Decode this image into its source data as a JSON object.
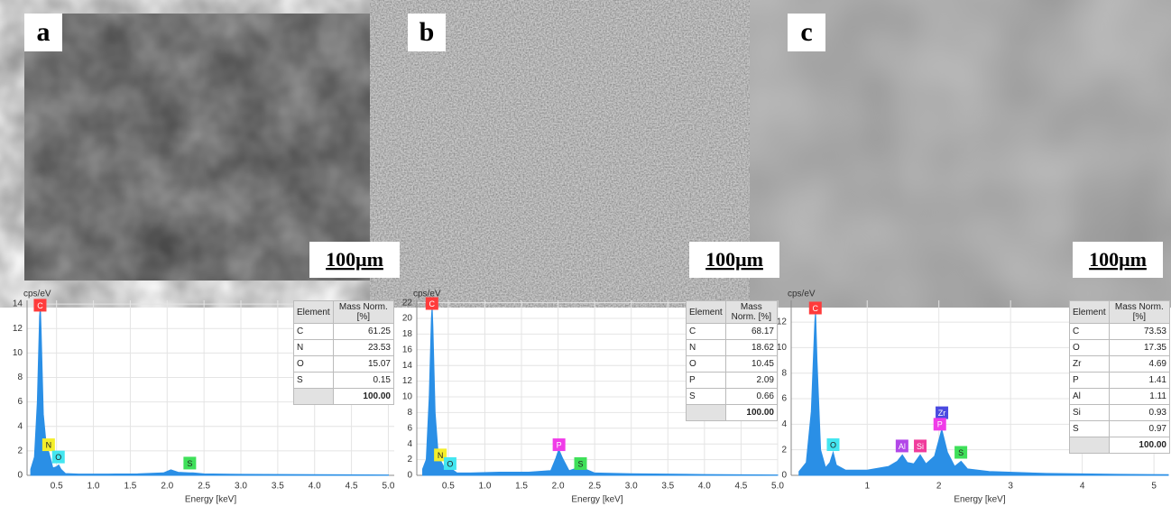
{
  "panels": [
    {
      "label": "a",
      "scale_bar": "100μm"
    },
    {
      "label": "b",
      "scale_bar": "100μm"
    },
    {
      "label": "c",
      "scale_bar": "100μm"
    }
  ],
  "chart_data": [
    {
      "type": "area",
      "y_label": "cps/eV",
      "x_label": "Energy [keV]",
      "color": "#2a8fe6",
      "grid": true,
      "x": [
        0.15,
        0.2,
        0.24,
        0.27,
        0.28,
        0.29,
        0.32,
        0.36,
        0.4,
        0.45,
        0.5,
        0.53,
        0.56,
        0.62,
        0.8,
        1.2,
        1.6,
        1.95,
        2.05,
        2.15,
        2.3,
        2.35,
        2.5,
        3.0,
        4.0,
        5.0
      ],
      "values": [
        0.5,
        1.5,
        6,
        13,
        13.8,
        12,
        5,
        2.5,
        1.8,
        0.6,
        0.7,
        0.85,
        0.5,
        0.15,
        0.1,
        0.1,
        0.12,
        0.2,
        0.45,
        0.25,
        0.2,
        0.2,
        0.12,
        0.08,
        0.05,
        0.03
      ],
      "xlim": [
        0.1,
        5.08
      ],
      "ylim": [
        0,
        14.3
      ],
      "xticks": [
        {
          "value": 0.5,
          "label": "0.5"
        },
        {
          "value": 1,
          "label": "1.0"
        },
        {
          "value": 1.5,
          "label": "1.5"
        },
        {
          "value": 2,
          "label": "2.0"
        },
        {
          "value": 2.5,
          "label": "2.5"
        },
        {
          "value": 3,
          "label": "3.0"
        },
        {
          "value": 3.5,
          "label": "3.5"
        },
        {
          "value": 4,
          "label": "4.0"
        },
        {
          "value": 4.5,
          "label": "4.5"
        },
        {
          "value": 5,
          "label": "5.0"
        }
      ],
      "yticks": [
        0,
        2,
        4,
        6,
        8,
        10,
        12,
        14
      ],
      "annotations": [
        {
          "text": "C",
          "x": 0.277,
          "y": 13.9,
          "color": "#ff3b3b"
        },
        {
          "text": "N",
          "x": 0.392,
          "y": 2.5,
          "color": "#f4ee2a"
        },
        {
          "text": "O",
          "x": 0.525,
          "y": 1.5,
          "color": "#43e6f0"
        },
        {
          "text": "S",
          "x": 2.307,
          "y": 1.0,
          "color": "#3fe05a"
        }
      ],
      "table": {
        "header": [
          "Element",
          "Mass Norm. [%]"
        ],
        "rows": [
          [
            "C",
            "61.25"
          ],
          [
            "N",
            "23.53"
          ],
          [
            "O",
            "15.07"
          ],
          [
            "S",
            "0.15"
          ]
        ],
        "total": "100.00"
      }
    },
    {
      "type": "area",
      "y_label": "cps/eV",
      "x_label": "Energy [keV]",
      "color": "#2a8fe6",
      "grid": true,
      "x": [
        0.15,
        0.2,
        0.24,
        0.27,
        0.28,
        0.29,
        0.32,
        0.36,
        0.4,
        0.45,
        0.5,
        0.53,
        0.56,
        0.62,
        0.8,
        1.2,
        1.6,
        1.9,
        1.97,
        2.01,
        2.06,
        2.15,
        2.25,
        2.31,
        2.37,
        2.5,
        3.0,
        4.0,
        5.0
      ],
      "values": [
        0.8,
        2,
        10,
        20,
        21.5,
        19,
        8,
        3,
        1.8,
        0.9,
        1,
        1.2,
        0.7,
        0.3,
        0.3,
        0.4,
        0.4,
        0.6,
        2.2,
        3.3,
        2.2,
        0.6,
        0.9,
        1.3,
        0.8,
        0.3,
        0.2,
        0.1,
        0.05
      ],
      "xlim": [
        0.07,
        5.0
      ],
      "ylim": [
        0,
        22.3
      ],
      "xticks": [
        {
          "value": 0.5,
          "label": "0.5"
        },
        {
          "value": 1,
          "label": "1.0"
        },
        {
          "value": 1.5,
          "label": "1.5"
        },
        {
          "value": 2,
          "label": "2.0"
        },
        {
          "value": 2.5,
          "label": "2.5"
        },
        {
          "value": 3,
          "label": "3.0"
        },
        {
          "value": 3.5,
          "label": "3.5"
        },
        {
          "value": 4,
          "label": "4.0"
        },
        {
          "value": 4.5,
          "label": "4.5"
        },
        {
          "value": 5,
          "label": "5.0"
        }
      ],
      "yticks": [
        0,
        2,
        4,
        6,
        8,
        10,
        12,
        14,
        16,
        18,
        20,
        22
      ],
      "annotations": [
        {
          "text": "C",
          "x": 0.277,
          "y": 21.9,
          "color": "#ff3b3b"
        },
        {
          "text": "N",
          "x": 0.392,
          "y": 2.6,
          "color": "#f4ee2a"
        },
        {
          "text": "O",
          "x": 0.525,
          "y": 1.5,
          "color": "#43e6f0"
        },
        {
          "text": "P",
          "x": 2.013,
          "y": 3.9,
          "color": "#f03ce8"
        },
        {
          "text": "S",
          "x": 2.307,
          "y": 1.5,
          "color": "#3fe05a"
        }
      ],
      "table": {
        "header": [
          "Element",
          "Mass Norm. [%]"
        ],
        "rows": [
          [
            "C",
            "68.17"
          ],
          [
            "N",
            "18.62"
          ],
          [
            "O",
            "10.45"
          ],
          [
            "P",
            "2.09"
          ],
          [
            "S",
            "0.66"
          ]
        ],
        "total": "100.00"
      }
    },
    {
      "type": "area",
      "y_label": "cps/eV",
      "x_label": "Energy [keV]",
      "color": "#2a8fe6",
      "grid": true,
      "x": [
        0.05,
        0.15,
        0.22,
        0.27,
        0.28,
        0.3,
        0.35,
        0.42,
        0.48,
        0.525,
        0.57,
        0.7,
        1.0,
        1.3,
        1.42,
        1.49,
        1.56,
        1.65,
        1.74,
        1.82,
        1.94,
        2.04,
        2.12,
        2.22,
        2.31,
        2.4,
        2.7,
        3.5,
        4.5,
        5.2
      ],
      "values": [
        0.3,
        1,
        5,
        12,
        12.8,
        9,
        2,
        0.6,
        1,
        1.8,
        0.8,
        0.4,
        0.4,
        0.7,
        1.1,
        1.6,
        1,
        0.9,
        1.6,
        0.9,
        1.5,
        3.6,
        1.8,
        0.7,
        1.1,
        0.5,
        0.3,
        0.15,
        0.08,
        0.05
      ],
      "xlim": [
        -0.06,
        5.2
      ],
      "ylim": [
        0,
        13.7
      ],
      "xticks": [
        1,
        2,
        3,
        4,
        5
      ],
      "yticks": [
        0,
        2,
        4,
        6,
        8,
        10,
        12
      ],
      "annotations": [
        {
          "text": "C",
          "x": 0.277,
          "y": 13.1,
          "color": "#ff3b3b"
        },
        {
          "text": "O",
          "x": 0.525,
          "y": 2.4,
          "color": "#43e6f0"
        },
        {
          "text": "Al",
          "x": 1.486,
          "y": 2.3,
          "color": "#b247e8"
        },
        {
          "text": "Si",
          "x": 1.74,
          "y": 2.3,
          "color": "#f03c9c"
        },
        {
          "text": "Zr",
          "x": 2.042,
          "y": 4.9,
          "color": "#4a4ae0"
        },
        {
          "text": "P",
          "x": 2.013,
          "y": 4.0,
          "color": "#f03ce8"
        },
        {
          "text": "S",
          "x": 2.307,
          "y": 1.8,
          "color": "#3fe05a"
        }
      ],
      "table": {
        "header": [
          "Element",
          "Mass Norm. [%]"
        ],
        "rows": [
          [
            "C",
            "73.53"
          ],
          [
            "O",
            "17.35"
          ],
          [
            "Zr",
            "4.69"
          ],
          [
            "P",
            "1.41"
          ],
          [
            "Al",
            "1.11"
          ],
          [
            "Si",
            "0.93"
          ],
          [
            "S",
            "0.97"
          ]
        ],
        "total": "100.00"
      }
    }
  ]
}
